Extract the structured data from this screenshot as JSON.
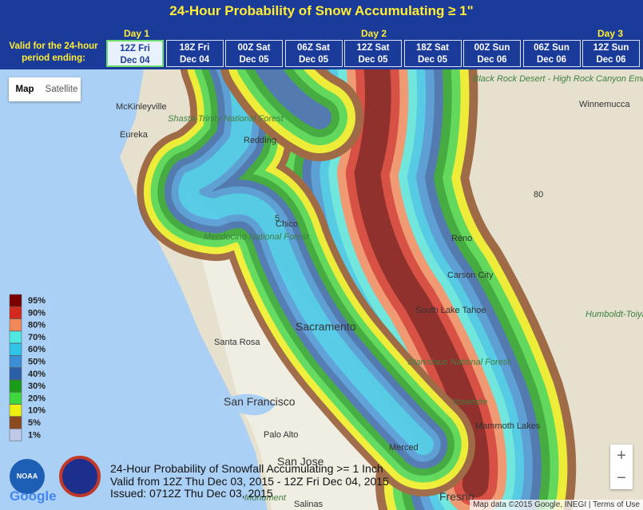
{
  "header": {
    "title": "24-Hour Probability of Snow Accumulating ≥ 1\"",
    "period_caption": "Valid for the 24-hour period ending:",
    "days": [
      "Day 1",
      "Day 2",
      "Day 3"
    ],
    "periods": [
      {
        "time": "12Z Fri",
        "date": "Dec 04"
      },
      {
        "time": "18Z Fri",
        "date": "Dec 04"
      },
      {
        "time": "00Z Sat",
        "date": "Dec 05"
      },
      {
        "time": "06Z Sat",
        "date": "Dec 05"
      },
      {
        "time": "12Z Sat",
        "date": "Dec 05"
      },
      {
        "time": "18Z Sat",
        "date": "Dec 05"
      },
      {
        "time": "00Z Sun",
        "date": "Dec 06"
      },
      {
        "time": "06Z Sun",
        "date": "Dec 06"
      },
      {
        "time": "12Z Sun",
        "date": "Dec 06"
      }
    ]
  },
  "map_controls": {
    "map": "Map",
    "satellite": "Satellite",
    "zoom_in": "+",
    "zoom_out": "−"
  },
  "legend": {
    "levels": [
      {
        "label": "95%",
        "color": "#7a0000"
      },
      {
        "label": "90%",
        "color": "#d42a1e"
      },
      {
        "label": "80%",
        "color": "#f2875a"
      },
      {
        "label": "70%",
        "color": "#4fe8e0"
      },
      {
        "label": "60%",
        "color": "#2fc4ea"
      },
      {
        "label": "50%",
        "color": "#3a8fd6"
      },
      {
        "label": "40%",
        "color": "#2b5fa8"
      },
      {
        "label": "30%",
        "color": "#1a9e1a"
      },
      {
        "label": "20%",
        "color": "#3ed83e"
      },
      {
        "label": "10%",
        "color": "#f0f010"
      },
      {
        "label": "5%",
        "color": "#8c4a20"
      },
      {
        "label": "1%",
        "color": "#bfc8e6"
      }
    ]
  },
  "places": [
    "McKinleyville",
    "Eureka",
    "Redding",
    "Chico",
    "Mendocino National Forest",
    "Shasta-Trinity National Forest",
    "Sacramento",
    "Santa Rosa",
    "San Francisco",
    "Palo Alto",
    "San Jose",
    "Merced",
    "Fresno",
    "Salinas",
    "Reno",
    "Carson City",
    "South Lake Tahoe",
    "Winnemucca",
    "Black Rock Desert - High Rock Canyon Emigrant...",
    "Humboldt-Toiyabe National Forest",
    "Stanislaus National Forest",
    "Yosemite",
    "Mammoth Lakes",
    "Monument",
    "5",
    "80"
  ],
  "info": [
    "24-Hour Probability of Snowfall Accumulating >= 1 Inch",
    "Valid from 12Z Thu Dec 03, 2015 - 12Z Fri Dec 04, 2015",
    "Issued: 0712Z Thu Dec 03, 2015"
  ],
  "attribution": {
    "google": "Google",
    "noaa": "NOAA",
    "map_data": "Map data ©2015 Google, INEGI",
    "terms": "Terms of Use"
  }
}
